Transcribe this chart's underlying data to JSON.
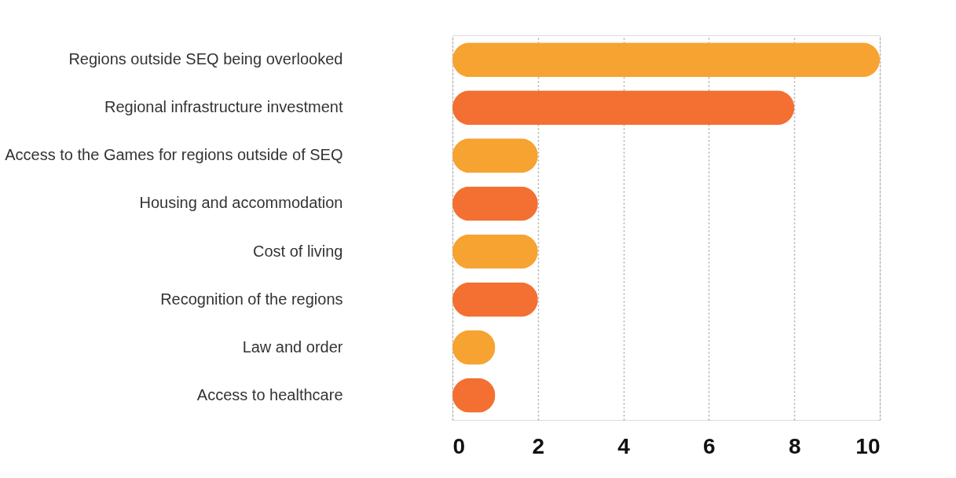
{
  "chart_data": {
    "type": "bar",
    "orientation": "horizontal",
    "categories": [
      "Regions outside SEQ being overlooked",
      "Regional infrastructure investment",
      "Access to the Games for regions outside of SEQ",
      "Housing and accommodation",
      "Cost of living",
      "Recognition of the regions",
      "Law and order",
      "Access to healthcare"
    ],
    "values": [
      10,
      8,
      2,
      2,
      2,
      2,
      1,
      1
    ],
    "colors": [
      "#f6a331",
      "#f37032",
      "#f6a331",
      "#f37032",
      "#f6a331",
      "#f37032",
      "#f6a331",
      "#f37032"
    ],
    "xlim": [
      0,
      10
    ],
    "xticks": [
      0,
      2,
      4,
      6,
      8,
      10
    ],
    "grid": "x"
  }
}
